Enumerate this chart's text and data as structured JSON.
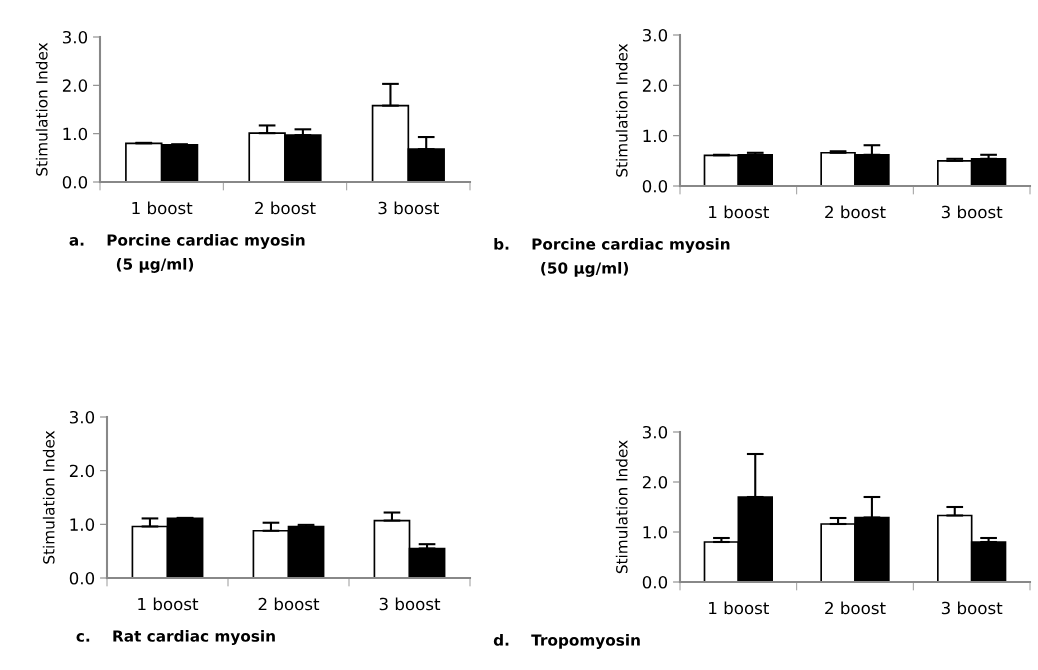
{
  "chart_data": [
    {
      "type": "bar",
      "title": "a.    Porcine cardiac myosin\n(5 µg/ml)",
      "ylabel": "Stimulation Index",
      "categories": [
        "1 boost",
        "2 boost",
        "3 boost"
      ],
      "ylim": [
        0,
        3.0
      ],
      "yticks": [
        {
          "value": 0,
          "label": "0.0"
        },
        {
          "value": 1,
          "label": "1.0"
        },
        {
          "value": 2,
          "label": "2.0"
        },
        {
          "value": 3,
          "label": "3.0"
        }
      ],
      "grid": false,
      "legend": false,
      "series": [
        {
          "color": "#ffffff",
          "values": [
            0.8,
            1.01,
            1.58
          ],
          "errors": [
            [
              0.8,
              0.81
            ],
            [
              1.01,
              1.17
            ],
            [
              1.58,
              2.03
            ]
          ]
        },
        {
          "color": "#000000",
          "values": [
            0.77,
            0.97,
            0.68
          ],
          "errors": [
            [
              0.77,
              0.78
            ],
            [
              0.97,
              1.09
            ],
            [
              0.68,
              0.93
            ]
          ]
        }
      ]
    },
    {
      "type": "bar",
      "title": "b.    Porcine cardiac myosin\n(50 µg/ml)",
      "ylabel": "Stimulation Index",
      "categories": [
        "1 boost",
        "2 boost",
        "3 boost"
      ],
      "ylim": [
        0,
        3.0
      ],
      "yticks": [
        {
          "value": 0,
          "label": "0.0"
        },
        {
          "value": 1,
          "label": "1.0"
        },
        {
          "value": 2,
          "label": "2.0"
        },
        {
          "value": 3,
          "label": "3.0"
        }
      ],
      "grid": false,
      "legend": false,
      "series": [
        {
          "color": "#ffffff",
          "values": [
            0.61,
            0.66,
            0.5
          ],
          "errors": [
            [
              0.61,
              0.62
            ],
            [
              0.66,
              0.69
            ],
            [
              0.5,
              0.54
            ]
          ]
        },
        {
          "color": "#000000",
          "values": [
            0.62,
            0.62,
            0.54
          ],
          "errors": [
            [
              0.62,
              0.66
            ],
            [
              0.62,
              0.81
            ],
            [
              0.54,
              0.62
            ]
          ]
        }
      ]
    },
    {
      "type": "bar",
      "title": "c.    Rat cardiac myosin",
      "ylabel": "Stimulation Index",
      "categories": [
        "1 boost",
        "2 boost",
        "3 boost"
      ],
      "ylim": [
        0,
        3.0
      ],
      "yticks": [
        {
          "value": 0,
          "label": "0.0"
        },
        {
          "value": 1,
          "label": "1.0"
        },
        {
          "value": 2,
          "label": "2.0"
        },
        {
          "value": 3,
          "label": "3.0"
        }
      ],
      "grid": false,
      "legend": false,
      "series": [
        {
          "color": "#ffffff",
          "values": [
            0.96,
            0.88,
            1.07
          ],
          "errors": [
            [
              0.96,
              1.11
            ],
            [
              0.88,
              1.03
            ],
            [
              1.07,
              1.22
            ]
          ]
        },
        {
          "color": "#000000",
          "values": [
            1.11,
            0.96,
            0.55
          ],
          "errors": [
            [
              1.11,
              1.12
            ],
            [
              0.96,
              0.99
            ],
            [
              0.55,
              0.63
            ]
          ]
        }
      ]
    },
    {
      "type": "bar",
      "title": "d.    Tropomyosin",
      "ylabel": "Stimulation Index",
      "categories": [
        "1 boost",
        "2 boost",
        "3 boost"
      ],
      "ylim": [
        0,
        3.0
      ],
      "yticks": [
        {
          "value": 0,
          "label": "0.0"
        },
        {
          "value": 1,
          "label": "1.0"
        },
        {
          "value": 2,
          "label": "2.0"
        },
        {
          "value": 3,
          "label": "3.0"
        }
      ],
      "grid": false,
      "legend": false,
      "series": [
        {
          "color": "#ffffff",
          "values": [
            0.8,
            1.16,
            1.33
          ],
          "errors": [
            [
              0.8,
              0.88
            ],
            [
              1.16,
              1.28
            ],
            [
              1.33,
              1.5
            ]
          ]
        },
        {
          "color": "#000000",
          "values": [
            1.7,
            1.29,
            0.8
          ],
          "errors": [
            [
              1.7,
              2.56
            ],
            [
              1.29,
              1.7
            ],
            [
              0.8,
              0.88
            ]
          ]
        }
      ]
    }
  ]
}
